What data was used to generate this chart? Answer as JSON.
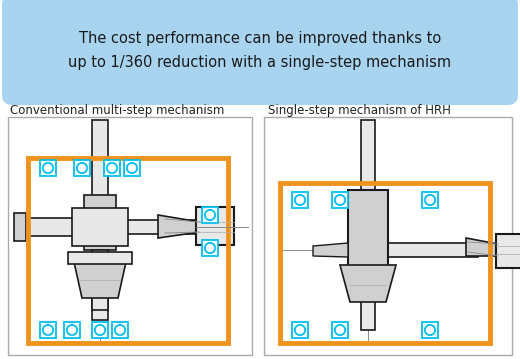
{
  "title_line1": "The cost performance can be improved thanks to",
  "title_line2": "up to 1/360 reduction with a single-step mechanism",
  "label_left": "Conventional multi-step mechanism",
  "label_right": "Single-step mechanism of HRH",
  "bg_color": "#ffffff",
  "banner_color": "#a8d4f0",
  "banner_text_color": "#1a1a1a",
  "orange_color": "#f0921e",
  "cyan_color": "#00c0f0",
  "gear_color": "#1a1a1a",
  "gear_fill": "#e8e8e8",
  "gear_fill2": "#d0d0d0"
}
